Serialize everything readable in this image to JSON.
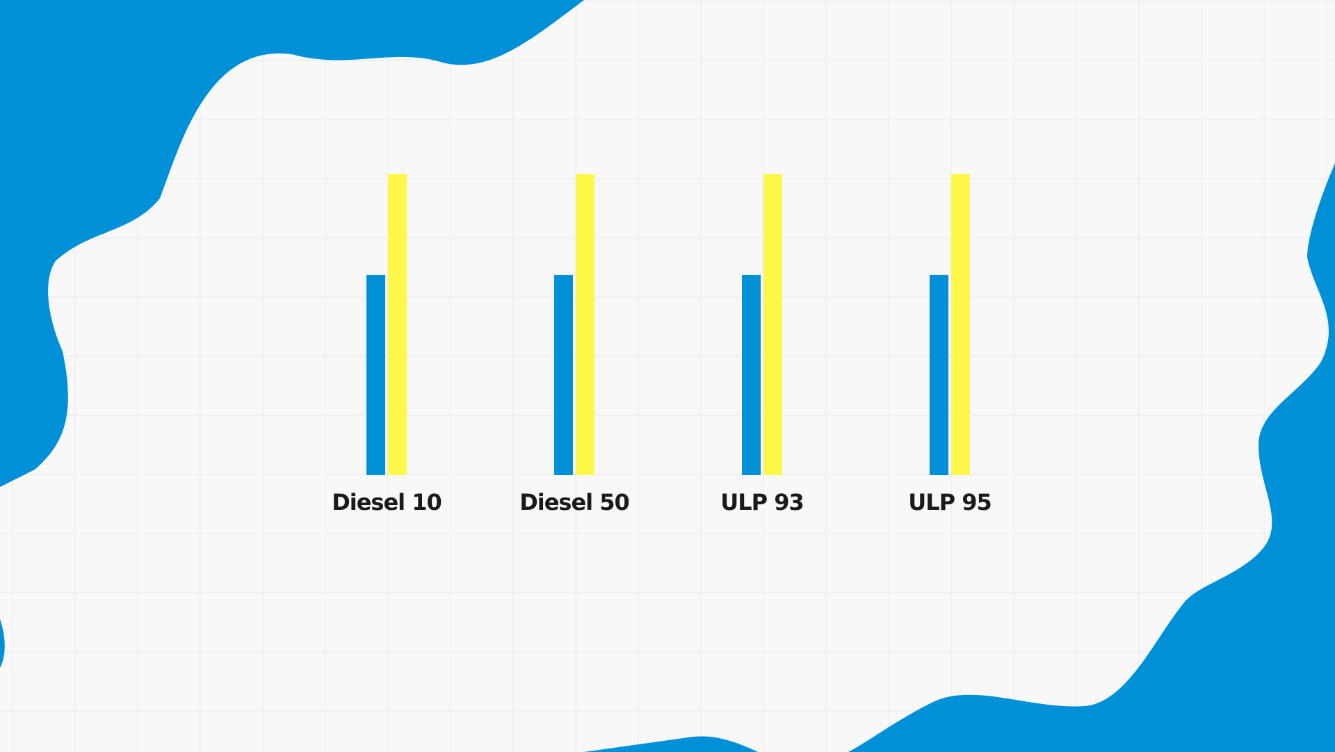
{
  "colors": {
    "background": "#f8f8f8",
    "grid": "#e9e9e9",
    "blob": "#0090d8",
    "series_a": "#0090d8",
    "series_b": "#fff84a",
    "label": "#1a1a1a"
  },
  "chart_data": {
    "type": "bar",
    "title": "",
    "xlabel": "",
    "ylabel": "",
    "categories": [
      "Diesel 10",
      "Diesel 50",
      "ULP 93",
      "ULP 95"
    ],
    "series": [
      {
        "values": [
          66.5,
          66.5,
          66.5,
          66.5
        ]
      },
      {
        "values": [
          100,
          100,
          100,
          100
        ]
      }
    ],
    "ylim": [
      0,
      100
    ],
    "grid": false,
    "legend": "none"
  }
}
